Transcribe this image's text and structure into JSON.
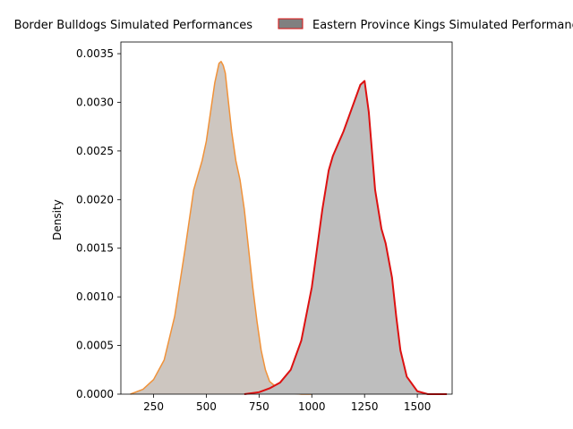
{
  "chart_data": {
    "type": "area",
    "ylabel": "Density",
    "xlim": [
      95,
      1665
    ],
    "ylim": [
      0,
      0.00362
    ],
    "xticks": [
      250,
      500,
      750,
      1000,
      1250,
      1500
    ],
    "xtick_labels": [
      "250",
      "500",
      "750",
      "1000",
      "1250",
      "1500"
    ],
    "yticks": [
      0,
      0.0005,
      0.001,
      0.0015,
      0.002,
      0.0025,
      0.003,
      0.0035
    ],
    "ytick_labels": [
      "0.0000",
      "0.0005",
      "0.0010",
      "0.0015",
      "0.0020",
      "0.0025",
      "0.0030",
      "0.0035"
    ],
    "grid": false,
    "legend_position": "top, above plot",
    "series": [
      {
        "name": "Border Bulldogs Simulated Performances",
        "fill_color": "#cdc6c0",
        "line_color": "#f0923a",
        "x": [
          140,
          200,
          250,
          300,
          350,
          400,
          440,
          460,
          480,
          500,
          520,
          540,
          560,
          570,
          580,
          590,
          600,
          620,
          640,
          660,
          680,
          700,
          720,
          740,
          760,
          780,
          800,
          850,
          900,
          950,
          1000
        ],
        "y": [
          0.0,
          5e-05,
          0.00015,
          0.00035,
          0.0008,
          0.0015,
          0.0021,
          0.00225,
          0.0024,
          0.0026,
          0.0029,
          0.0032,
          0.0034,
          0.00342,
          0.00338,
          0.0033,
          0.0031,
          0.0027,
          0.0024,
          0.0022,
          0.0019,
          0.0015,
          0.0011,
          0.00075,
          0.00045,
          0.00025,
          0.00013,
          4e-05,
          1e-05,
          0.0,
          0.0
        ]
      },
      {
        "name": "Eastern Province Kings Simulated Performances",
        "fill_color": "#bebebe",
        "line_color": "#dd1111",
        "x": [
          680,
          750,
          800,
          850,
          900,
          950,
          1000,
          1050,
          1080,
          1100,
          1150,
          1200,
          1230,
          1250,
          1270,
          1300,
          1330,
          1350,
          1380,
          1400,
          1420,
          1450,
          1500,
          1550,
          1600,
          1640
        ],
        "y": [
          0.0,
          2e-05,
          6e-05,
          0.00012,
          0.00025,
          0.00055,
          0.0011,
          0.0019,
          0.0023,
          0.00245,
          0.0027,
          0.003,
          0.00318,
          0.00322,
          0.0029,
          0.0021,
          0.0017,
          0.00155,
          0.0012,
          0.0008,
          0.00045,
          0.00018,
          3e-05,
          0.0,
          0.0,
          0.0
        ]
      }
    ]
  }
}
